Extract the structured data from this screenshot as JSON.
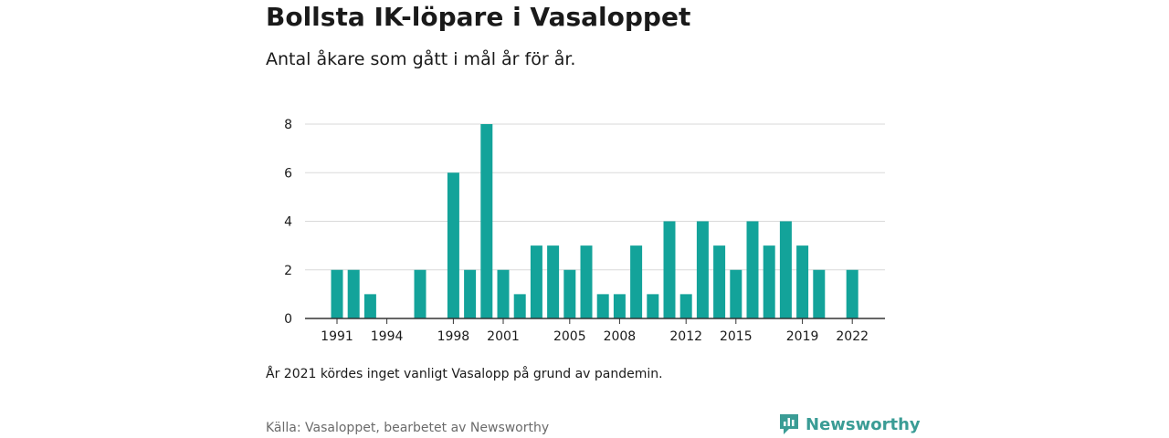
{
  "title": "Bollsta IK-löpare i Vasaloppet",
  "subtitle": "Antal åkare som gått i mål år för år.",
  "note": "År 2021 kördes inget vanligt Vasalopp på grund av pandemin.",
  "source": "Källa: Vasaloppet, bearbetet av Newsworthy",
  "brand": {
    "name": "Newsworthy",
    "icon": "newsworthy-logo-icon"
  },
  "colors": {
    "bar": "#13a39a",
    "grid": "#d9d9d9",
    "axis": "#333333",
    "brand": "#3a9c95"
  },
  "chart_data": {
    "type": "bar",
    "title": "Bollsta IK-löpare i Vasaloppet",
    "xlabel": "",
    "ylabel": "",
    "ylim": [
      0,
      8
    ],
    "grid": true,
    "yticks": [
      0,
      2,
      4,
      6,
      8
    ],
    "xticks": [
      1991,
      1994,
      1998,
      2001,
      2005,
      2008,
      2012,
      2015,
      2019,
      2022
    ],
    "categories": [
      1991,
      1992,
      1993,
      1994,
      1995,
      1996,
      1997,
      1998,
      1999,
      2000,
      2001,
      2002,
      2003,
      2004,
      2005,
      2006,
      2007,
      2008,
      2009,
      2010,
      2011,
      2012,
      2013,
      2014,
      2015,
      2016,
      2017,
      2018,
      2019,
      2020,
      2021,
      2022
    ],
    "values": [
      2,
      2,
      1,
      0,
      0,
      2,
      0,
      6,
      2,
      8,
      2,
      1,
      3,
      3,
      2,
      3,
      1,
      1,
      3,
      1,
      4,
      1,
      4,
      3,
      2,
      4,
      3,
      4,
      3,
      2,
      null,
      2
    ]
  }
}
